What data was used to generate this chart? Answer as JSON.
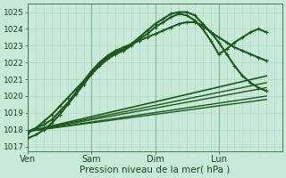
{
  "xlabel": "Pression niveau de la mer( hPa )",
  "bg_color": "#c8e8d8",
  "plot_bg_color": "#c8e8d8",
  "grid_color_minor": "#b0d4c0",
  "grid_color_major": "#88b898",
  "line_color": "#1a5a1a",
  "yticks": [
    1017,
    1018,
    1019,
    1020,
    1021,
    1022,
    1023,
    1024,
    1025
  ],
  "ylim": [
    1016.7,
    1025.5
  ],
  "xlim": [
    0,
    96
  ],
  "xtick_labels": [
    "Ven",
    "Sam",
    "Dim",
    "Lun"
  ],
  "xtick_positions": [
    0,
    24,
    48,
    72
  ],
  "vline_positions": [
    0,
    24,
    48,
    72
  ],
  "lines_marked": [
    {
      "x": [
        0,
        3,
        6,
        9,
        12,
        15,
        18,
        21,
        24,
        27,
        30,
        33,
        36,
        39,
        42,
        45,
        48,
        51,
        54,
        57,
        60,
        63,
        66,
        69,
        72,
        75,
        78,
        81,
        84,
        87,
        90
      ],
      "y": [
        1017.9,
        1018.1,
        1018.3,
        1018.6,
        1019.1,
        1019.6,
        1020.2,
        1020.8,
        1021.4,
        1021.9,
        1022.3,
        1022.6,
        1022.8,
        1023.1,
        1023.5,
        1023.9,
        1024.3,
        1024.6,
        1024.9,
        1025.0,
        1025.0,
        1024.8,
        1024.3,
        1023.8,
        1023.2,
        1022.5,
        1021.8,
        1021.2,
        1020.8,
        1020.5,
        1020.3
      ],
      "lw": 1.5,
      "ms": 3.5
    },
    {
      "x": [
        0,
        3,
        6,
        9,
        12,
        15,
        18,
        21,
        24,
        27,
        30,
        33,
        36,
        39,
        42,
        45,
        48,
        51,
        54,
        57,
        60,
        63,
        66,
        69,
        72,
        75,
        78,
        81,
        84,
        87,
        90
      ],
      "y": [
        1017.5,
        1017.7,
        1018.0,
        1018.4,
        1018.9,
        1019.5,
        1020.1,
        1020.7,
        1021.3,
        1021.8,
        1022.2,
        1022.5,
        1022.7,
        1023.0,
        1023.4,
        1023.7,
        1024.1,
        1024.4,
        1024.7,
        1024.9,
        1024.8,
        1024.5,
        1024.0,
        1023.3,
        1022.5,
        1022.8,
        1023.2,
        1023.5,
        1023.8,
        1024.0,
        1023.8
      ],
      "lw": 1.5,
      "ms": 3.5
    },
    {
      "x": [
        0,
        3,
        6,
        9,
        12,
        15,
        18,
        21,
        24,
        27,
        30,
        33,
        36,
        39,
        42,
        45,
        48,
        51,
        54,
        57,
        60,
        63,
        66,
        69,
        72,
        75,
        78,
        81,
        84,
        87,
        90
      ],
      "y": [
        1017.8,
        1018.1,
        1018.5,
        1018.9,
        1019.4,
        1019.9,
        1020.4,
        1020.9,
        1021.5,
        1022.0,
        1022.4,
        1022.7,
        1022.9,
        1023.1,
        1023.3,
        1023.5,
        1023.7,
        1023.9,
        1024.1,
        1024.3,
        1024.4,
        1024.4,
        1024.2,
        1023.8,
        1023.5,
        1023.2,
        1022.9,
        1022.7,
        1022.5,
        1022.3,
        1022.1
      ],
      "lw": 1.5,
      "ms": 3.5
    }
  ],
  "lines_straight": [
    {
      "x": [
        0,
        90
      ],
      "y": [
        1017.9,
        1021.2
      ],
      "lw": 1.2
    },
    {
      "x": [
        0,
        90
      ],
      "y": [
        1017.9,
        1020.5
      ],
      "lw": 1.0
    },
    {
      "x": [
        0,
        90
      ],
      "y": [
        1017.9,
        1019.8
      ],
      "lw": 1.0
    },
    {
      "x": [
        0,
        90
      ],
      "y": [
        1017.9,
        1020.0
      ],
      "lw": 1.0
    },
    {
      "x": [
        0,
        90
      ],
      "y": [
        1017.9,
        1020.8
      ],
      "lw": 1.0
    }
  ]
}
